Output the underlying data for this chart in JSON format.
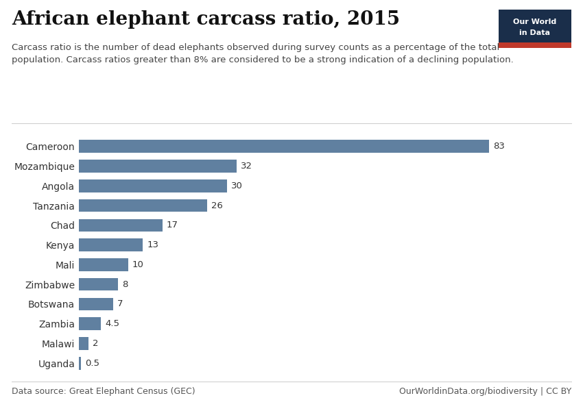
{
  "title": "African elephant carcass ratio, 2015",
  "subtitle": "Carcass ratio is the number of dead elephants observed during survey counts as a percentage of the total\npopulation. Carcass ratios greater than 8% are considered to be a strong indication of a declining population.",
  "countries": [
    "Cameroon",
    "Mozambique",
    "Angola",
    "Tanzania",
    "Chad",
    "Kenya",
    "Mali",
    "Zimbabwe",
    "Botswana",
    "Zambia",
    "Malawi",
    "Uganda"
  ],
  "values": [
    83,
    32,
    30,
    26,
    17,
    13,
    10,
    8,
    7,
    4.5,
    2,
    0.5
  ],
  "bar_color": "#6080a0",
  "background_color": "#ffffff",
  "data_source": "Data source: Great Elephant Census (GEC)",
  "credit": "OurWorldinData.org/biodiversity | CC BY",
  "owid_box_color": "#1a2e4a",
  "owid_red": "#c0392b",
  "value_labels": [
    "83",
    "32",
    "30",
    "26",
    "17",
    "13",
    "10",
    "8",
    "7",
    "4.5",
    "2",
    "0.5"
  ],
  "xlim": [
    0,
    92
  ],
  "title_fontsize": 20,
  "subtitle_fontsize": 9.5,
  "label_fontsize": 10,
  "value_fontsize": 9.5,
  "footer_fontsize": 9
}
